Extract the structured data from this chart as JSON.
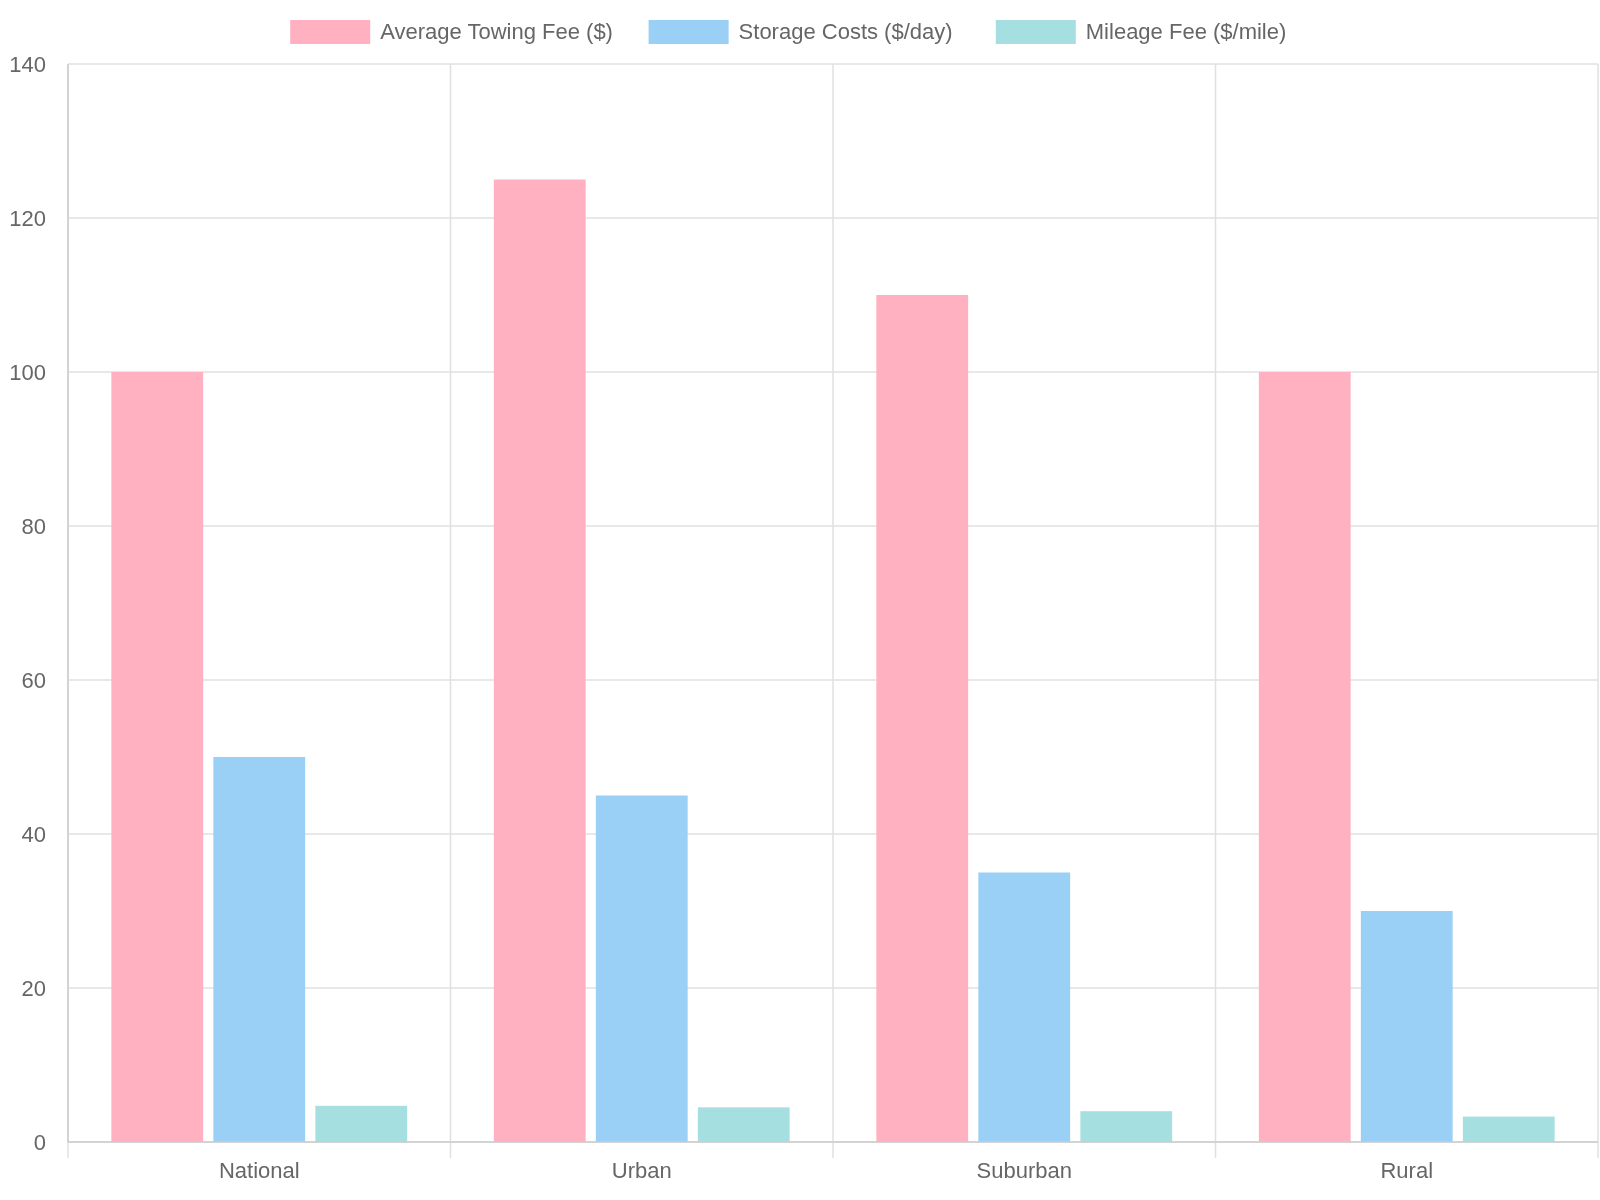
{
  "chart_data": {
    "type": "bar",
    "categories": [
      "National",
      "Urban",
      "Suburban",
      "Rural"
    ],
    "series": [
      {
        "name": "Average Towing Fee ($)",
        "color": "#ffb1c1",
        "values": [
          100,
          125,
          110,
          100
        ]
      },
      {
        "name": "Storage Costs ($/day)",
        "color": "#9ad0f5",
        "values": [
          50,
          45,
          35,
          30
        ]
      },
      {
        "name": "Mileage Fee ($/mile)",
        "color": "#a5dfdf",
        "values": [
          4.7,
          4.5,
          4,
          3.3
        ]
      }
    ],
    "ylim": [
      0,
      140
    ],
    "yticks": [
      0,
      20,
      40,
      60,
      80,
      100,
      120,
      140
    ],
    "grid": true,
    "legend": "top"
  }
}
